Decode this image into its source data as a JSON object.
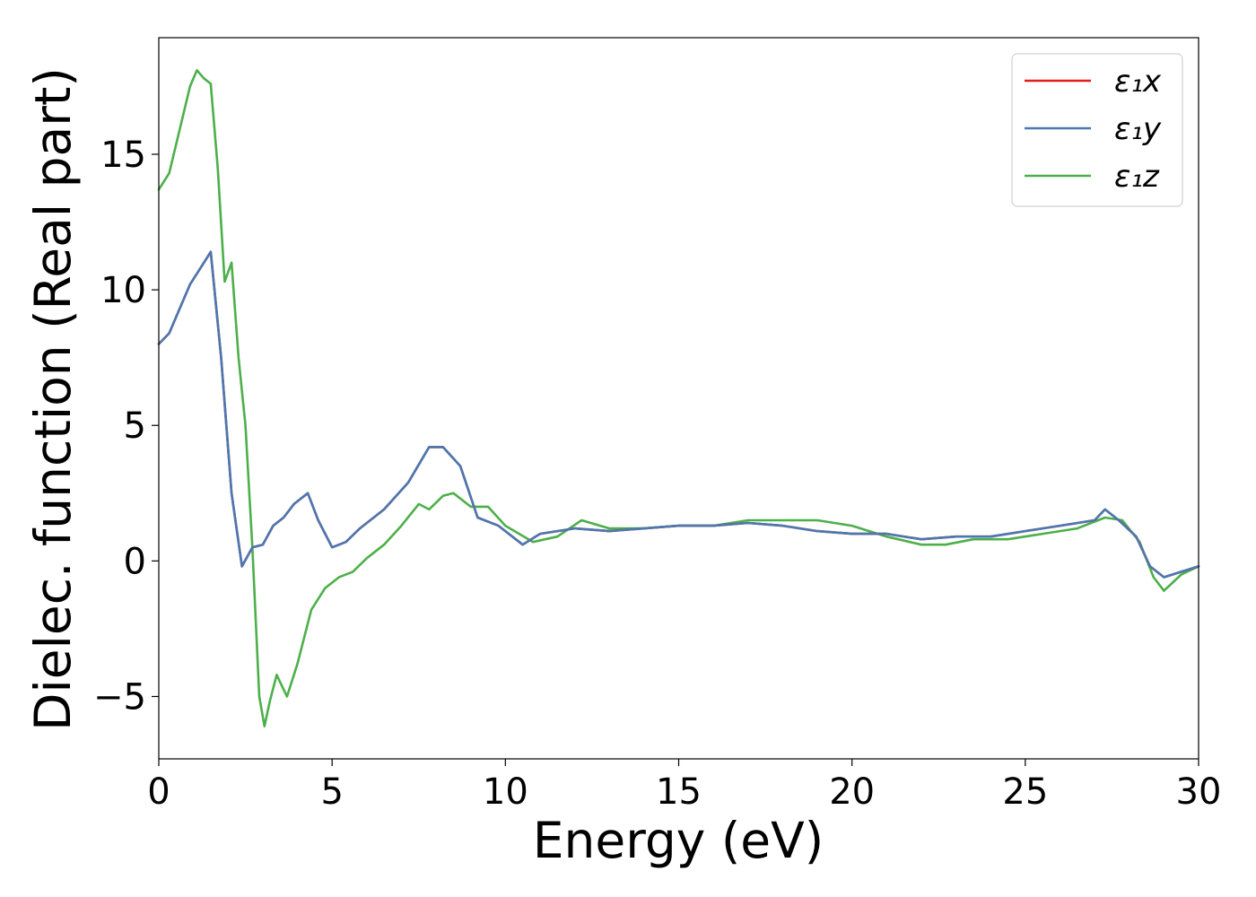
{
  "chart_data": {
    "type": "line",
    "xlabel": "Energy (eV)",
    "ylabel": "Dielec. function (Real part)",
    "xlim": [
      0,
      30
    ],
    "ylim": [
      -7.3,
      19.3
    ],
    "xticks": [
      0,
      5,
      10,
      15,
      20,
      25,
      30
    ],
    "xtick_labels": [
      "0",
      "5",
      "10",
      "15",
      "20",
      "25",
      "30"
    ],
    "yticks": [
      -5,
      0,
      5,
      10,
      15
    ],
    "ytick_labels": [
      "−5",
      "0",
      "5",
      "10",
      "15"
    ],
    "grid": false,
    "legend_position": "top-right",
    "series": [
      {
        "name": "ε₁x",
        "color": "#e41a1c",
        "x": [
          0,
          0.3,
          0.6,
          0.9,
          1.2,
          1.5,
          1.8,
          2.1,
          2.4,
          2.7,
          3.0,
          3.3,
          3.6,
          3.9,
          4.3,
          4.6,
          5.0,
          5.4,
          5.8,
          6.5,
          7.2,
          7.8,
          8.2,
          8.7,
          9.2,
          9.8,
          10.5,
          11.0,
          11.5,
          12.0,
          13.0,
          14.0,
          15.0,
          16.0,
          17.0,
          18.0,
          19.0,
          20.0,
          21.0,
          22.0,
          23.0,
          24.0,
          25.0,
          26.0,
          27.0,
          27.3,
          27.7,
          28.2,
          28.6,
          29.0,
          29.5,
          30.0
        ],
        "y": [
          8.0,
          8.4,
          9.3,
          10.2,
          10.8,
          11.4,
          7.5,
          2.5,
          -0.2,
          0.5,
          0.6,
          1.3,
          1.6,
          2.1,
          2.5,
          1.5,
          0.5,
          0.7,
          1.2,
          1.9,
          2.9,
          4.2,
          4.2,
          3.5,
          1.6,
          1.3,
          0.6,
          1.0,
          1.1,
          1.2,
          1.1,
          1.2,
          1.3,
          1.3,
          1.4,
          1.3,
          1.1,
          1.0,
          1.0,
          0.8,
          0.9,
          0.9,
          1.1,
          1.3,
          1.5,
          1.9,
          1.5,
          0.9,
          -0.2,
          -0.6,
          -0.4,
          -0.2
        ]
      },
      {
        "name": "ε₁y",
        "color": "#4a78b0",
        "x": [
          0,
          0.3,
          0.6,
          0.9,
          1.2,
          1.5,
          1.8,
          2.1,
          2.4,
          2.7,
          3.0,
          3.3,
          3.6,
          3.9,
          4.3,
          4.6,
          5.0,
          5.4,
          5.8,
          6.5,
          7.2,
          7.8,
          8.2,
          8.7,
          9.2,
          9.8,
          10.5,
          11.0,
          11.5,
          12.0,
          13.0,
          14.0,
          15.0,
          16.0,
          17.0,
          18.0,
          19.0,
          20.0,
          21.0,
          22.0,
          23.0,
          24.0,
          25.0,
          26.0,
          27.0,
          27.3,
          27.7,
          28.2,
          28.6,
          29.0,
          29.5,
          30.0
        ],
        "y": [
          8.0,
          8.4,
          9.3,
          10.2,
          10.8,
          11.4,
          7.5,
          2.5,
          -0.2,
          0.5,
          0.6,
          1.3,
          1.6,
          2.1,
          2.5,
          1.5,
          0.5,
          0.7,
          1.2,
          1.9,
          2.9,
          4.2,
          4.2,
          3.5,
          1.6,
          1.3,
          0.6,
          1.0,
          1.1,
          1.2,
          1.1,
          1.2,
          1.3,
          1.3,
          1.4,
          1.3,
          1.1,
          1.0,
          1.0,
          0.8,
          0.9,
          0.9,
          1.1,
          1.3,
          1.5,
          1.9,
          1.5,
          0.9,
          -0.2,
          -0.6,
          -0.4,
          -0.2
        ]
      },
      {
        "name": "ε₁z",
        "color": "#4daf4a",
        "x": [
          0,
          0.3,
          0.6,
          0.9,
          1.1,
          1.3,
          1.5,
          1.7,
          1.9,
          2.1,
          2.3,
          2.5,
          2.7,
          2.9,
          3.05,
          3.2,
          3.4,
          3.7,
          4.0,
          4.4,
          4.8,
          5.2,
          5.6,
          6.0,
          6.5,
          7.0,
          7.5,
          7.8,
          8.2,
          8.5,
          9.0,
          9.5,
          10.0,
          10.8,
          11.5,
          12.2,
          13.0,
          14.0,
          15.0,
          16.0,
          17.0,
          18.0,
          19.0,
          20.0,
          21.0,
          22.0,
          22.7,
          23.5,
          24.5,
          25.5,
          26.5,
          27.3,
          27.8,
          28.3,
          28.7,
          29.0,
          29.5,
          30.0
        ],
        "y": [
          13.7,
          14.3,
          15.9,
          17.5,
          18.1,
          17.8,
          17.6,
          14.5,
          10.3,
          11.0,
          7.5,
          5.0,
          0.5,
          -5.0,
          -6.1,
          -5.2,
          -4.2,
          -5.0,
          -3.8,
          -1.8,
          -1.0,
          -0.6,
          -0.4,
          0.1,
          0.6,
          1.3,
          2.1,
          1.9,
          2.4,
          2.5,
          2.0,
          2.0,
          1.3,
          0.7,
          0.9,
          1.5,
          1.2,
          1.2,
          1.3,
          1.3,
          1.5,
          1.5,
          1.5,
          1.3,
          0.9,
          0.6,
          0.6,
          0.8,
          0.8,
          1.0,
          1.2,
          1.6,
          1.5,
          0.7,
          -0.6,
          -1.1,
          -0.5,
          -0.2
        ]
      }
    ]
  }
}
